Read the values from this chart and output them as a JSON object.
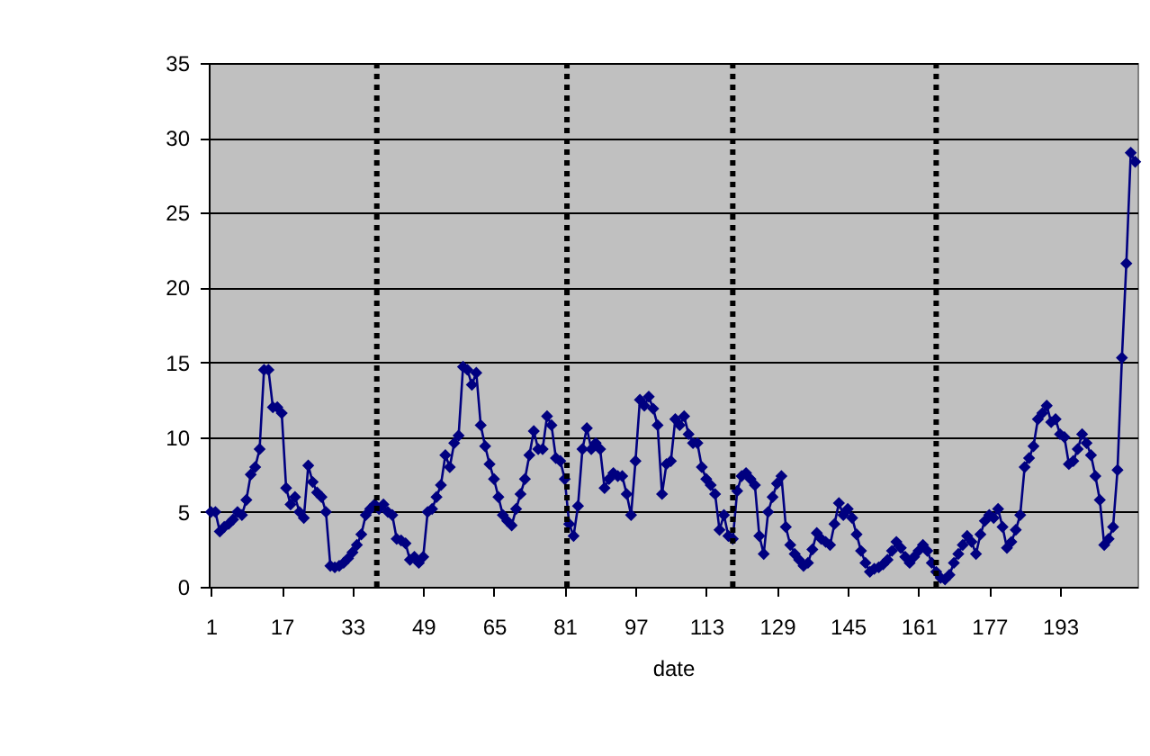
{
  "chart_data": {
    "type": "line",
    "xlabel": "date",
    "x": [
      1,
      2,
      3,
      4,
      5,
      6,
      7,
      8,
      9,
      10,
      11,
      12,
      13,
      14,
      15,
      16,
      17,
      18,
      19,
      20,
      21,
      22,
      23,
      24,
      25,
      26,
      27,
      28,
      29,
      30,
      31,
      32,
      33,
      34,
      35,
      36,
      37,
      38,
      39,
      40,
      41,
      42,
      43,
      44,
      45,
      46,
      47,
      48,
      49,
      50,
      51,
      52,
      53,
      54,
      55,
      56,
      57,
      58,
      59,
      60,
      61,
      62,
      63,
      64,
      65,
      66,
      67,
      68,
      69,
      70,
      71,
      72,
      73,
      74,
      75,
      76,
      77,
      78,
      79,
      80,
      81,
      82,
      83,
      84,
      85,
      86,
      87,
      88,
      89,
      90,
      91,
      92,
      93,
      94,
      95,
      96,
      97,
      98,
      99,
      100,
      101,
      102,
      103,
      104,
      105,
      106,
      107,
      108,
      109,
      110,
      111,
      112,
      113,
      114,
      115,
      116,
      117,
      118,
      119,
      120,
      121,
      122,
      123,
      124,
      125,
      126,
      127,
      128,
      129,
      130,
      131,
      132,
      133,
      134,
      135,
      136,
      137,
      138,
      139,
      140,
      141,
      142,
      143,
      144,
      145,
      146,
      147,
      148,
      149,
      150,
      151,
      152,
      153,
      154,
      155,
      156,
      157,
      158,
      159,
      160,
      161,
      162,
      163,
      164,
      165,
      166,
      167,
      168,
      169,
      170,
      171,
      172,
      173,
      174,
      175,
      176,
      177,
      178,
      179,
      180,
      181,
      182,
      183,
      184,
      185,
      186,
      187,
      188,
      189,
      190,
      191,
      192,
      193,
      194,
      195,
      196,
      197,
      198,
      199,
      200,
      201,
      202,
      203,
      204,
      205,
      206,
      207,
      208,
      209,
      210
    ],
    "series": [
      {
        "color": "#000080",
        "values": [
          5,
          5,
          3.7,
          4.0,
          4.2,
          4.5,
          5,
          4.8,
          5.8,
          7.5,
          8,
          9.2,
          14.5,
          14.5,
          12,
          12,
          11.6,
          6.6,
          5.5,
          6,
          5,
          4.6,
          8.1,
          7,
          6.3,
          6,
          5,
          1.4,
          1.3,
          1.4,
          1.6,
          1.9,
          2.3,
          2.8,
          3.5,
          4.8,
          5.2,
          5.5,
          5.2,
          5.5,
          5,
          4.8,
          3.2,
          3.1,
          2.9,
          1.8,
          2.0,
          1.6,
          2.0,
          5.0,
          5.2,
          6,
          6.8,
          8.8,
          8,
          9.6,
          10.1,
          14.7,
          14.5,
          13.5,
          14.3,
          10.8,
          9.4,
          8.2,
          7.2,
          6,
          4.8,
          4.4,
          4.1,
          5.2,
          6.2,
          7.2,
          8.8,
          10.4,
          9.2,
          9.2,
          11.4,
          10.8,
          8.6,
          8.4,
          7.2,
          4.2,
          3.4,
          5.4,
          9.2,
          10.6,
          9.2,
          9.6,
          9.2,
          6.6,
          7.2,
          7.6,
          7.4,
          7.4,
          6.2,
          4.8,
          8.4,
          12.5,
          12.1,
          12.7,
          11.9,
          10.8,
          6.2,
          8.2,
          8.4,
          11.2,
          10.8,
          11.4,
          10.2,
          9.6,
          9.6,
          8.0,
          7.2,
          6.8,
          6.2,
          3.8,
          4.8,
          3.4,
          3.2,
          6.4,
          7.4,
          7.6,
          7.2,
          6.8,
          3.4,
          2.2,
          5.0,
          6.0,
          6.9,
          7.4,
          4.0,
          2.8,
          2.2,
          1.8,
          1.4,
          1.6,
          2.5,
          3.6,
          3.2,
          3.0,
          2.8,
          4.2,
          5.6,
          4.8,
          5.2,
          4.6,
          3.5,
          2.4,
          1.6,
          1.0,
          1.2,
          1.3,
          1.5,
          1.8,
          2.4,
          3.0,
          2.6,
          2.0,
          1.6,
          2.0,
          2.4,
          2.8,
          2.4,
          1.6,
          1.0,
          0.6,
          0.5,
          0.8,
          1.6,
          2.2,
          2.8,
          3.4,
          3.0,
          2.2,
          3.5,
          4.4,
          4.8,
          4.6,
          5.2,
          4.0,
          2.6,
          3.0,
          3.8,
          4.8,
          8.0,
          8.6,
          9.4,
          11.2,
          11.6,
          12.1,
          11.0,
          11.2,
          10.2,
          10.0,
          8.2,
          8.4,
          9.2,
          10.2,
          9.6,
          8.8,
          7.4,
          5.8,
          2.8,
          3.2,
          4.0,
          7.8,
          15.3,
          21.6,
          29.0,
          28.4
        ]
      }
    ],
    "xlim": [
      0.5,
      210.5
    ],
    "xticks": [
      1,
      17,
      33,
      49,
      65,
      81,
      97,
      113,
      129,
      145,
      161,
      177,
      193
    ],
    "ylim": [
      0,
      35
    ],
    "yticks": [
      0,
      5,
      10,
      15,
      20,
      25,
      30,
      35
    ],
    "ref_lines": [
      {
        "axis": "x",
        "value": 38.5,
        "color": "#000000",
        "line_style": "dotted"
      },
      {
        "axis": "x",
        "value": 81.5,
        "color": "#000000",
        "line_style": "dotted"
      },
      {
        "axis": "x",
        "value": 119,
        "color": "#000000",
        "line_style": "dotted"
      },
      {
        "axis": "x",
        "value": 165,
        "color": "#000000",
        "line_style": "dotted"
      }
    ],
    "grid": "y",
    "marker": "diamond",
    "line_style": "solid"
  }
}
